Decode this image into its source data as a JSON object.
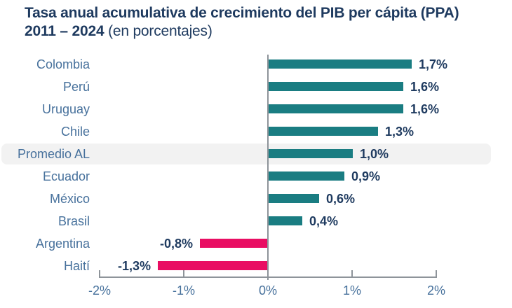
{
  "title": {
    "line1": "Tasa anual acumulativa de crecimiento del PIB per cápita (PPA)",
    "line2_bold": "2011 – 2024",
    "line2_normal": " (en porcentajes)"
  },
  "colors": {
    "title_navy": "#1e3a5f",
    "category_label_blue": "#47719c",
    "value_label_navy": "#1e3a5f",
    "bar_positive_teal": "#1a7d82",
    "bar_negative_pink": "#e90e63",
    "axis_gray": "#8e949a",
    "highlight_band_gray": "#f2f2f2"
  },
  "chart_data": {
    "type": "bar",
    "orientation": "horizontal",
    "title": "Tasa anual acumulativa de crecimiento del PIB per cápita (PPA) 2011 – 2024 (en porcentajes)",
    "categories": [
      "Colombia",
      "Perú",
      "Uruguay",
      "Chile",
      "Promedio AL",
      "Ecuador",
      "México",
      "Brasil",
      "Argentina",
      "Haití"
    ],
    "values": [
      1.7,
      1.6,
      1.6,
      1.3,
      1.0,
      0.9,
      0.6,
      0.4,
      -0.8,
      -1.3
    ],
    "value_labels": [
      "1,7%",
      "1,6%",
      "1,6%",
      "1,3%",
      "1,0%",
      "0,9%",
      "0,6%",
      "0,4%",
      "-0,8%",
      "-1,3%"
    ],
    "highlighted_category": "Promedio AL",
    "xlim": [
      -2,
      2
    ],
    "x_ticks": [
      "-2%",
      "-1%",
      "0%",
      "1%",
      "2%"
    ],
    "x_tick_values": [
      -2,
      -1,
      0,
      1,
      2
    ],
    "grid": false,
    "legend": false
  }
}
